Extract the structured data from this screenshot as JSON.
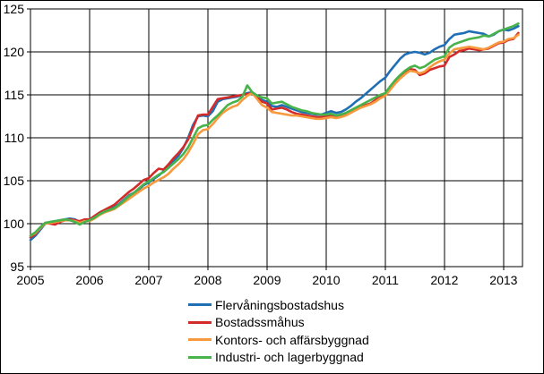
{
  "chart_data": {
    "type": "line",
    "title": "",
    "xlabel": "",
    "ylabel": "",
    "x_unit": "month",
    "x_start": "2005-01",
    "x_end": "2013-04",
    "xlim": [
      2005.0,
      2013.32
    ],
    "ylim": [
      95,
      125
    ],
    "y_ticks": [
      95,
      100,
      105,
      110,
      115,
      120,
      125
    ],
    "x_ticks": [
      2005,
      2006,
      2007,
      2008,
      2009,
      2010,
      2011,
      2012,
      2013
    ],
    "grid": true,
    "legend_position": "bottom",
    "axis_color": "#000000",
    "series": [
      {
        "name": "Flervåningsbostadshus",
        "color": "#1f6fb4",
        "values": [
          98.1,
          98.6,
          99.3,
          100.0,
          100.2,
          100.3,
          100.4,
          100.5,
          100.6,
          100.5,
          100.2,
          100.4,
          100.5,
          100.8,
          101.2,
          101.5,
          101.7,
          101.9,
          102.3,
          102.8,
          103.3,
          103.6,
          104.0,
          104.5,
          104.8,
          105.2,
          105.6,
          106.1,
          106.7,
          107.3,
          107.9,
          108.8,
          110.0,
          111.5,
          112.5,
          112.6,
          112.5,
          113.1,
          114.2,
          114.5,
          114.6,
          114.7,
          114.8,
          115.0,
          115.2,
          115.3,
          114.9,
          114.4,
          114.2,
          113.7,
          113.6,
          113.8,
          113.6,
          113.4,
          113.2,
          113.0,
          112.9,
          112.8,
          112.7,
          112.7,
          112.9,
          113.1,
          112.9,
          113.0,
          113.3,
          113.7,
          114.2,
          114.6,
          115.1,
          115.6,
          116.1,
          116.6,
          117.0,
          117.8,
          118.5,
          119.2,
          119.7,
          119.9,
          120.0,
          119.9,
          119.7,
          119.9,
          120.3,
          120.6,
          120.8,
          121.5,
          122.0,
          122.1,
          122.2,
          122.4,
          122.3,
          122.2,
          122.1,
          121.8,
          122.0,
          122.4,
          122.6,
          122.5,
          122.7,
          123.0
        ]
      },
      {
        "name": "Bostadssmåhus",
        "color": "#d22b2a",
        "values": [
          98.4,
          98.8,
          99.5,
          100.1,
          100.0,
          99.9,
          100.2,
          100.4,
          100.5,
          100.4,
          100.3,
          100.5,
          100.5,
          100.9,
          101.3,
          101.6,
          101.9,
          102.2,
          102.7,
          103.2,
          103.7,
          104.1,
          104.6,
          105.1,
          105.3,
          105.9,
          106.4,
          106.3,
          106.9,
          107.6,
          108.2,
          108.9,
          109.8,
          111.2,
          112.6,
          112.7,
          112.7,
          113.6,
          114.5,
          114.6,
          114.7,
          114.8,
          114.9,
          115.0,
          115.1,
          115.2,
          114.7,
          114.2,
          114.0,
          113.3,
          113.4,
          113.5,
          113.3,
          113.0,
          112.8,
          112.7,
          112.6,
          112.5,
          112.4,
          112.4,
          112.5,
          112.6,
          112.4,
          112.5,
          112.7,
          113.0,
          113.3,
          113.6,
          113.8,
          114.0,
          114.4,
          114.8,
          115.1,
          115.8,
          116.5,
          117.1,
          117.6,
          118.0,
          117.9,
          117.3,
          117.5,
          117.9,
          118.1,
          118.3,
          118.4,
          119.4,
          119.7,
          120.1,
          120.2,
          120.4,
          120.3,
          120.2,
          120.3,
          120.4,
          120.7,
          121.0,
          121.1,
          121.4,
          121.5,
          122.2
        ]
      },
      {
        "name": "Kontors- och affärsbyggnad",
        "color": "#f7993c",
        "values": [
          98.6,
          98.9,
          99.5,
          100.0,
          100.1,
          100.2,
          100.3,
          100.4,
          100.4,
          100.3,
          100.1,
          100.3,
          100.3,
          100.6,
          101.0,
          101.3,
          101.5,
          101.7,
          102.1,
          102.5,
          102.9,
          103.3,
          103.7,
          104.1,
          104.4,
          104.8,
          105.1,
          105.4,
          105.8,
          106.4,
          106.9,
          107.5,
          108.3,
          109.3,
          110.4,
          110.9,
          111.0,
          111.6,
          112.3,
          112.9,
          113.3,
          113.6,
          113.8,
          114.4,
          114.9,
          115.2,
          114.5,
          113.8,
          113.5,
          113.0,
          112.9,
          112.8,
          112.7,
          112.6,
          112.6,
          112.5,
          112.4,
          112.3,
          112.2,
          112.2,
          112.3,
          112.4,
          112.3,
          112.4,
          112.6,
          112.9,
          113.2,
          113.5,
          113.7,
          113.9,
          114.2,
          114.6,
          114.9,
          115.6,
          116.3,
          116.9,
          117.4,
          117.8,
          117.7,
          117.5,
          117.7,
          118.2,
          118.6,
          118.9,
          119.1,
          119.8,
          120.3,
          120.4,
          120.5,
          120.6,
          120.5,
          120.4,
          120.3,
          120.5,
          120.8,
          121.1,
          121.2,
          121.5,
          121.6,
          122.0
        ]
      },
      {
        "name": "Industri- och lagerbyggnad",
        "color": "#47b34a",
        "values": [
          98.6,
          99.0,
          99.6,
          100.1,
          100.2,
          100.3,
          100.4,
          100.5,
          100.4,
          100.2,
          99.9,
          100.2,
          100.4,
          100.7,
          101.1,
          101.4,
          101.6,
          101.8,
          102.2,
          102.7,
          103.2,
          103.6,
          104.1,
          104.6,
          104.9,
          105.3,
          105.7,
          106.0,
          106.5,
          107.0,
          107.5,
          108.1,
          108.9,
          110.0,
          111.1,
          111.4,
          111.5,
          112.1,
          112.6,
          113.2,
          113.8,
          114.1,
          114.3,
          114.8,
          116.1,
          115.3,
          114.9,
          114.7,
          114.6,
          114.0,
          114.1,
          114.2,
          113.9,
          113.6,
          113.4,
          113.2,
          113.1,
          112.9,
          112.8,
          112.7,
          112.7,
          112.8,
          112.6,
          112.7,
          112.9,
          113.2,
          113.5,
          113.8,
          114.1,
          114.4,
          114.7,
          115.0,
          115.2,
          116.0,
          116.7,
          117.3,
          117.8,
          118.2,
          118.4,
          118.1,
          118.3,
          118.7,
          119.1,
          119.3,
          119.5,
          120.5,
          120.9,
          121.1,
          121.3,
          121.5,
          121.6,
          121.7,
          121.9,
          121.8,
          122.1,
          122.4,
          122.6,
          122.8,
          123.0,
          123.3
        ]
      }
    ]
  }
}
